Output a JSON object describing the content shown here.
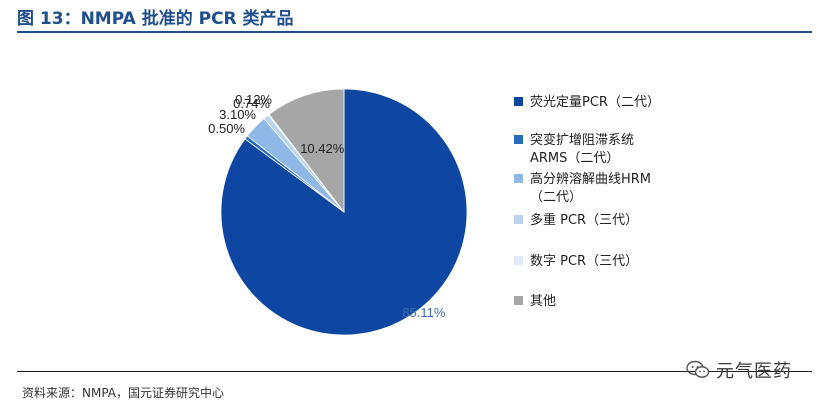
{
  "figure": {
    "title": "图 13：NMPA 批准的 PCR 类产品",
    "source": "资料来源：NMPA，国元证券研究中心"
  },
  "watermark": {
    "text": "元气医药",
    "icon": "wechat-icon"
  },
  "chart_data": {
    "type": "pie",
    "title": "",
    "legend_position": "right",
    "slices": [
      {
        "label": "荧光定量PCR（二代）",
        "value": 85.11,
        "display": "85.11%",
        "color": "#0d47a1"
      },
      {
        "label": "突变扩增阻滞系统ARMS（二代）",
        "value": 0.5,
        "display": "0.50%",
        "color": "#2a6dbd"
      },
      {
        "label": "高分辨溶解曲线HRM（二代）",
        "value": 3.1,
        "display": "3.10%",
        "color": "#8fb8e6"
      },
      {
        "label": "多重 PCR（三代）",
        "value": 0.74,
        "display": "0.74%",
        "color": "#b9d3f0"
      },
      {
        "label": "数字 PCR（三代）",
        "value": 0.12,
        "display": "0.12%",
        "color": "#dfeaf7"
      },
      {
        "label": "其他",
        "value": 10.42,
        "display": "10.42%",
        "color": "#a6a6a6"
      }
    ],
    "legend_lines": [
      [
        "荧光定量PCR（二代）"
      ],
      [
        "突变扩增阻滞系统",
        "ARMS（二代）"
      ],
      [
        "高分辨溶解曲线HRM",
        "（二代）"
      ],
      [
        "多重 PCR（三代）"
      ],
      [
        "数字 PCR（三代）"
      ],
      [
        "其他"
      ]
    ]
  }
}
